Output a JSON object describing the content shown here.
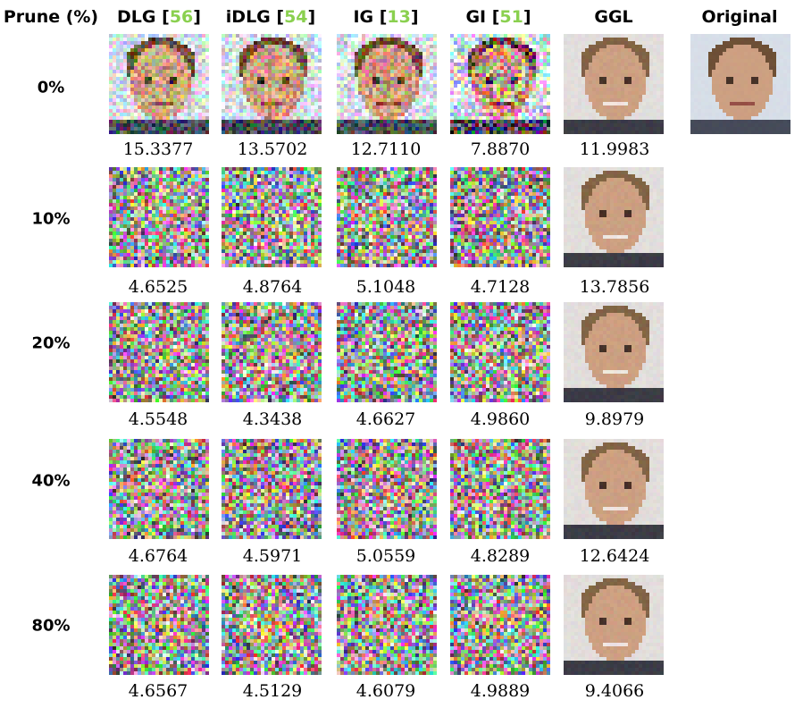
{
  "header": {
    "prune_label": "Prune (%)",
    "columns": [
      {
        "name": "DLG ",
        "ref": "56"
      },
      {
        "name": "iDLG ",
        "ref": "54"
      },
      {
        "name": "IG ",
        "ref": "13"
      },
      {
        "name": "GI ",
        "ref": "51"
      },
      {
        "name": "GGL",
        "ref": ""
      },
      {
        "name": "Original",
        "ref": ""
      }
    ]
  },
  "rows": [
    {
      "label": "0%",
      "scores": [
        "15.3377",
        "13.5702",
        "12.7110",
        "7.8870",
        "11.9983"
      ]
    },
    {
      "label": "10%",
      "scores": [
        "4.6525",
        "4.8764",
        "5.1048",
        "4.7128",
        "13.7856"
      ]
    },
    {
      "label": "20%",
      "scores": [
        "4.5548",
        "4.3438",
        "4.6627",
        "4.9860",
        "9.8979"
      ]
    },
    {
      "label": "40%",
      "scores": [
        "4.6764",
        "4.5971",
        "5.0559",
        "4.8289",
        "12.6424"
      ]
    },
    {
      "label": "80%",
      "scores": [
        "4.6567",
        "4.5129",
        "4.6079",
        "4.9889",
        "9.4066"
      ]
    }
  ],
  "image_kinds": {
    "face_noisy": "face with noise reconstruction",
    "noise": "random noise reconstruction",
    "face": "reconstructed face",
    "original": "original face"
  }
}
